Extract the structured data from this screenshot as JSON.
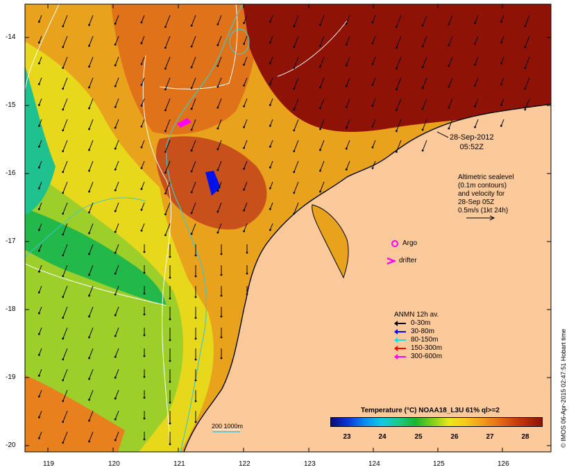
{
  "map": {
    "date_label_1": "28-Sep-2012",
    "date_label_2": "05:52Z",
    "altimetric_note": [
      "Altimetric sealevel",
      "(0.1m contours)",
      "and velocity for",
      "28-Sep 05Z",
      "0.5m/s (1kt 24h)"
    ],
    "argo_label": "Argo",
    "drifter_label": "drifter",
    "scale_label": "200  1000m",
    "credit": "© IMOS 06-Apr-2015 02:47:51 Hobart time",
    "x_ticks": [
      "119",
      "120",
      "121",
      "122",
      "123",
      "124",
      "125",
      "126"
    ],
    "y_ticks": [
      "-14",
      "-15",
      "-16",
      "-17",
      "-18",
      "-19",
      "-20"
    ]
  },
  "anmn_legend": {
    "title": "ANMN 12h av.",
    "items": [
      {
        "label": "0-30m",
        "color": "#000000"
      },
      {
        "label": "30-80m",
        "color": "#0000ff"
      },
      {
        "label": "80-150m",
        "color": "#00e5e5"
      },
      {
        "label": "150-300m",
        "color": "#ff0000"
      },
      {
        "label": "300-600m",
        "color": "#ff00ff"
      }
    ]
  },
  "colorbar": {
    "title": "Temperature (°C) NOAA18_L3U 61% ql>=2",
    "ticks": [
      "23",
      "24",
      "25",
      "26",
      "27",
      "28"
    ]
  },
  "colors": {
    "land": "#fcc99a",
    "warm_max": "#8f1206",
    "contour": "#ffffff",
    "isobath": "#40c8c8"
  }
}
